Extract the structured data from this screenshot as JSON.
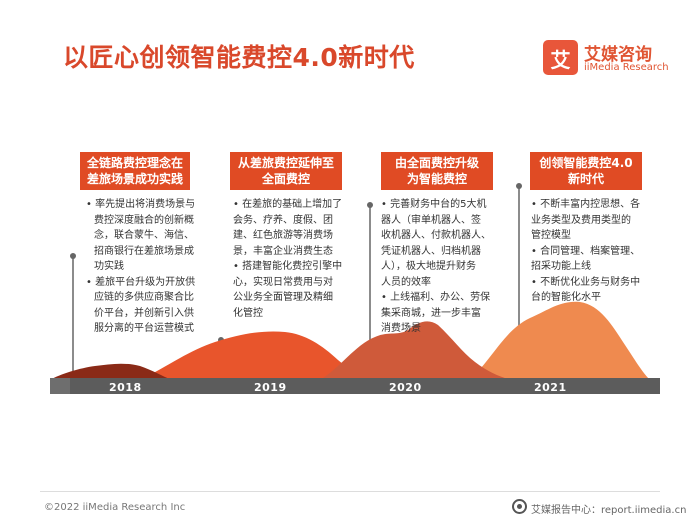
{
  "title": "以匠心创领智能费控4.0新时代",
  "brand": {
    "logo_char": "艾",
    "name_cn": "艾媒咨询",
    "name_en": "iiMedia Research"
  },
  "timeline": [
    {
      "year": "2018",
      "heading": [
        "全链路费控理念在",
        "差旅场景成功实践"
      ],
      "items": [
        "• 率先提出将消费场景与",
        "  费控深度融合的创新概",
        "  念，联合蒙牛、海信、",
        "  招商银行在差旅场景成",
        "  功实践",
        "• 差旅平台升级为开放供",
        "  应链的多供应商聚合比",
        "  价平台，并创新引入供",
        "  服分离的平台运营模式"
      ]
    },
    {
      "year": "2019",
      "heading": [
        "从差旅费控延伸至",
        "全面费控"
      ],
      "items": [
        "• 在差旅的基础上增加了",
        "会务、疗养、度假、团",
        "建、红色旅游等消费场",
        "景，丰富企业消费生态",
        "• 搭建智能化费控引擎中",
        "心，实现日常费用与对",
        "公业务全面管理及精细",
        "化管控"
      ]
    },
    {
      "year": "2020",
      "heading": [
        "由全面费控升级",
        "为智能费控"
      ],
      "items": [
        "• 完善财务中台的5大机",
        "器人（审单机器人、签",
        "收机器人、付款机器人、",
        "凭证机器人、归档机器",
        "人），极大地提升财务",
        "人员的效率",
        "• 上线福利、办公、劳保",
        "集采商城，进一步丰富",
        "消费场景"
      ]
    },
    {
      "year": "2021",
      "heading": [
        "创领智能费控4.0",
        "新时代"
      ],
      "items": [
        "• 不断丰富内控思想、各",
        "业务类型及费用类型的",
        "管控模型",
        "• 合同管理、档案管理、",
        "招采功能上线",
        "• 不断优化业务与财务中",
        "台的智能化水平"
      ]
    }
  ],
  "footer": {
    "copyright": "©2022  iiMedia Research  Inc",
    "source": "艾媒报告中心：report.iimedia.cn"
  },
  "colors": {
    "accent": "#e04b24",
    "dark_red": "#8a2a17",
    "mid_orange": "#e8552c",
    "rust": "#cf5a3a",
    "light_orange": "#ef8a4f",
    "timeline_bar": "#5c5c5c"
  }
}
